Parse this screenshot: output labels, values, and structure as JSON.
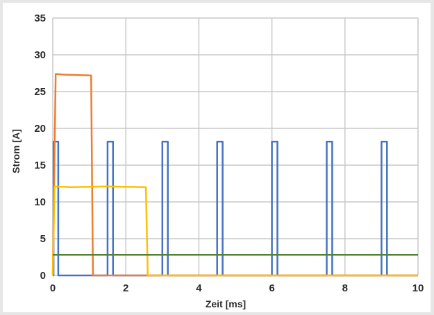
{
  "chart_data": {
    "type": "line",
    "xlabel": "Zeit [ms]",
    "ylabel": "Strom [A]",
    "xlim": [
      0,
      10
    ],
    "ylim": [
      0,
      35
    ],
    "xticks": [
      0,
      2,
      4,
      6,
      8,
      10
    ],
    "yticks": [
      0,
      5,
      10,
      15,
      20,
      25,
      30,
      35
    ],
    "grid": true,
    "colors": {
      "background": "#e6e6e6",
      "plot_bg": "#ffffff",
      "grid": "#c8c8c8"
    },
    "series": [
      {
        "color": "#4472c4",
        "x": [
          0.0,
          0.02,
          0.02,
          0.15,
          0.15,
          1.5,
          1.5,
          1.65,
          1.65,
          3.0,
          3.0,
          3.15,
          3.15,
          4.5,
          4.5,
          4.65,
          4.65,
          6.0,
          6.0,
          6.15,
          6.15,
          7.5,
          7.5,
          7.65,
          7.65,
          9.0,
          9.0,
          9.15,
          9.15,
          10.0
        ],
        "y": [
          0,
          0,
          18.2,
          18.2,
          0,
          0,
          18.2,
          18.2,
          0,
          0,
          18.2,
          18.2,
          0,
          0,
          18.2,
          18.2,
          0,
          0,
          18.2,
          18.2,
          0,
          0,
          18.2,
          18.2,
          0,
          0,
          18.2,
          18.2,
          0,
          0
        ]
      },
      {
        "color": "#ed7d31",
        "x": [
          0.0,
          0.08,
          0.3,
          1.0,
          1.05,
          1.1,
          10.0
        ],
        "y": [
          0,
          27.4,
          27.3,
          27.2,
          27.2,
          0,
          0
        ]
      },
      {
        "color": "#ffc000",
        "x": [
          0.0,
          0.05,
          0.5,
          1.5,
          2.5,
          2.55,
          2.6,
          10.0
        ],
        "y": [
          0,
          12.1,
          12.0,
          12.1,
          12.0,
          12.0,
          0,
          0
        ]
      },
      {
        "color": "#548235",
        "x": [
          0.0,
          10.0
        ],
        "y": [
          2.8,
          2.8
        ]
      }
    ]
  }
}
